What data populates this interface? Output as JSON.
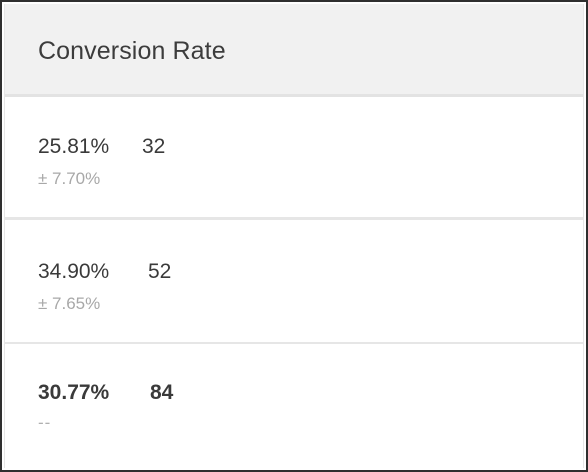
{
  "header": {
    "title": "Conversion Rate"
  },
  "rows": [
    {
      "rate": "25.81%",
      "count": "32",
      "interval": "± 7.70%"
    },
    {
      "rate": "34.90%",
      "count": "52",
      "interval": "± 7.65%"
    },
    {
      "rate": "30.77%",
      "count": "84",
      "interval": "--"
    }
  ],
  "colors": {
    "header_bg": "#f1f1f1",
    "text_primary": "#3a3a3a",
    "text_muted": "#a8a8a8",
    "divider": "#e6e6e6",
    "frame_border": "#2f2f2f"
  }
}
